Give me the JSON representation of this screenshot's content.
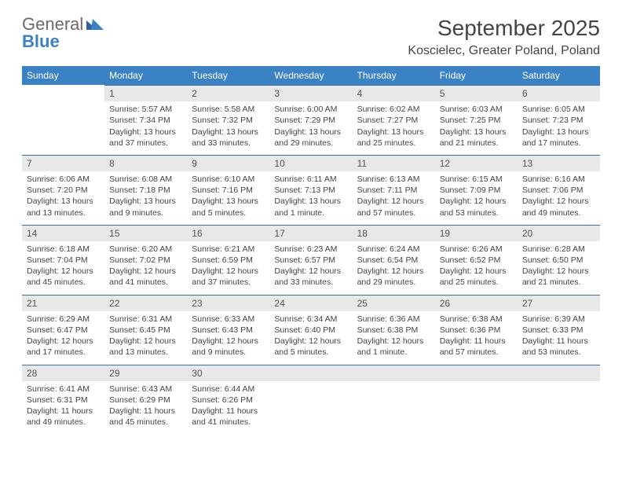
{
  "brand": {
    "line1": "General",
    "line2": "Blue"
  },
  "title": "September 2025",
  "location": "Koscielec, Greater Poland, Poland",
  "dayHeaders": [
    "Sunday",
    "Monday",
    "Tuesday",
    "Wednesday",
    "Thursday",
    "Friday",
    "Saturday"
  ],
  "colors": {
    "headerBg": "#3b82c4",
    "headerText": "#ffffff",
    "dayNumBg": "#e8e8e8",
    "ruleColor": "#3b6fa0",
    "bodyText": "#444444"
  },
  "weeks": [
    [
      null,
      {
        "num": "1",
        "sunrise": "Sunrise: 5:57 AM",
        "sunset": "Sunset: 7:34 PM",
        "daylight": "Daylight: 13 hours and 37 minutes."
      },
      {
        "num": "2",
        "sunrise": "Sunrise: 5:58 AM",
        "sunset": "Sunset: 7:32 PM",
        "daylight": "Daylight: 13 hours and 33 minutes."
      },
      {
        "num": "3",
        "sunrise": "Sunrise: 6:00 AM",
        "sunset": "Sunset: 7:29 PM",
        "daylight": "Daylight: 13 hours and 29 minutes."
      },
      {
        "num": "4",
        "sunrise": "Sunrise: 6:02 AM",
        "sunset": "Sunset: 7:27 PM",
        "daylight": "Daylight: 13 hours and 25 minutes."
      },
      {
        "num": "5",
        "sunrise": "Sunrise: 6:03 AM",
        "sunset": "Sunset: 7:25 PM",
        "daylight": "Daylight: 13 hours and 21 minutes."
      },
      {
        "num": "6",
        "sunrise": "Sunrise: 6:05 AM",
        "sunset": "Sunset: 7:23 PM",
        "daylight": "Daylight: 13 hours and 17 minutes."
      }
    ],
    [
      {
        "num": "7",
        "sunrise": "Sunrise: 6:06 AM",
        "sunset": "Sunset: 7:20 PM",
        "daylight": "Daylight: 13 hours and 13 minutes."
      },
      {
        "num": "8",
        "sunrise": "Sunrise: 6:08 AM",
        "sunset": "Sunset: 7:18 PM",
        "daylight": "Daylight: 13 hours and 9 minutes."
      },
      {
        "num": "9",
        "sunrise": "Sunrise: 6:10 AM",
        "sunset": "Sunset: 7:16 PM",
        "daylight": "Daylight: 13 hours and 5 minutes."
      },
      {
        "num": "10",
        "sunrise": "Sunrise: 6:11 AM",
        "sunset": "Sunset: 7:13 PM",
        "daylight": "Daylight: 13 hours and 1 minute."
      },
      {
        "num": "11",
        "sunrise": "Sunrise: 6:13 AM",
        "sunset": "Sunset: 7:11 PM",
        "daylight": "Daylight: 12 hours and 57 minutes."
      },
      {
        "num": "12",
        "sunrise": "Sunrise: 6:15 AM",
        "sunset": "Sunset: 7:09 PM",
        "daylight": "Daylight: 12 hours and 53 minutes."
      },
      {
        "num": "13",
        "sunrise": "Sunrise: 6:16 AM",
        "sunset": "Sunset: 7:06 PM",
        "daylight": "Daylight: 12 hours and 49 minutes."
      }
    ],
    [
      {
        "num": "14",
        "sunrise": "Sunrise: 6:18 AM",
        "sunset": "Sunset: 7:04 PM",
        "daylight": "Daylight: 12 hours and 45 minutes."
      },
      {
        "num": "15",
        "sunrise": "Sunrise: 6:20 AM",
        "sunset": "Sunset: 7:02 PM",
        "daylight": "Daylight: 12 hours and 41 minutes."
      },
      {
        "num": "16",
        "sunrise": "Sunrise: 6:21 AM",
        "sunset": "Sunset: 6:59 PM",
        "daylight": "Daylight: 12 hours and 37 minutes."
      },
      {
        "num": "17",
        "sunrise": "Sunrise: 6:23 AM",
        "sunset": "Sunset: 6:57 PM",
        "daylight": "Daylight: 12 hours and 33 minutes."
      },
      {
        "num": "18",
        "sunrise": "Sunrise: 6:24 AM",
        "sunset": "Sunset: 6:54 PM",
        "daylight": "Daylight: 12 hours and 29 minutes."
      },
      {
        "num": "19",
        "sunrise": "Sunrise: 6:26 AM",
        "sunset": "Sunset: 6:52 PM",
        "daylight": "Daylight: 12 hours and 25 minutes."
      },
      {
        "num": "20",
        "sunrise": "Sunrise: 6:28 AM",
        "sunset": "Sunset: 6:50 PM",
        "daylight": "Daylight: 12 hours and 21 minutes."
      }
    ],
    [
      {
        "num": "21",
        "sunrise": "Sunrise: 6:29 AM",
        "sunset": "Sunset: 6:47 PM",
        "daylight": "Daylight: 12 hours and 17 minutes."
      },
      {
        "num": "22",
        "sunrise": "Sunrise: 6:31 AM",
        "sunset": "Sunset: 6:45 PM",
        "daylight": "Daylight: 12 hours and 13 minutes."
      },
      {
        "num": "23",
        "sunrise": "Sunrise: 6:33 AM",
        "sunset": "Sunset: 6:43 PM",
        "daylight": "Daylight: 12 hours and 9 minutes."
      },
      {
        "num": "24",
        "sunrise": "Sunrise: 6:34 AM",
        "sunset": "Sunset: 6:40 PM",
        "daylight": "Daylight: 12 hours and 5 minutes."
      },
      {
        "num": "25",
        "sunrise": "Sunrise: 6:36 AM",
        "sunset": "Sunset: 6:38 PM",
        "daylight": "Daylight: 12 hours and 1 minute."
      },
      {
        "num": "26",
        "sunrise": "Sunrise: 6:38 AM",
        "sunset": "Sunset: 6:36 PM",
        "daylight": "Daylight: 11 hours and 57 minutes."
      },
      {
        "num": "27",
        "sunrise": "Sunrise: 6:39 AM",
        "sunset": "Sunset: 6:33 PM",
        "daylight": "Daylight: 11 hours and 53 minutes."
      }
    ],
    [
      {
        "num": "28",
        "sunrise": "Sunrise: 6:41 AM",
        "sunset": "Sunset: 6:31 PM",
        "daylight": "Daylight: 11 hours and 49 minutes."
      },
      {
        "num": "29",
        "sunrise": "Sunrise: 6:43 AM",
        "sunset": "Sunset: 6:29 PM",
        "daylight": "Daylight: 11 hours and 45 minutes."
      },
      {
        "num": "30",
        "sunrise": "Sunrise: 6:44 AM",
        "sunset": "Sunset: 6:26 PM",
        "daylight": "Daylight: 11 hours and 41 minutes."
      },
      null,
      null,
      null,
      null
    ]
  ]
}
